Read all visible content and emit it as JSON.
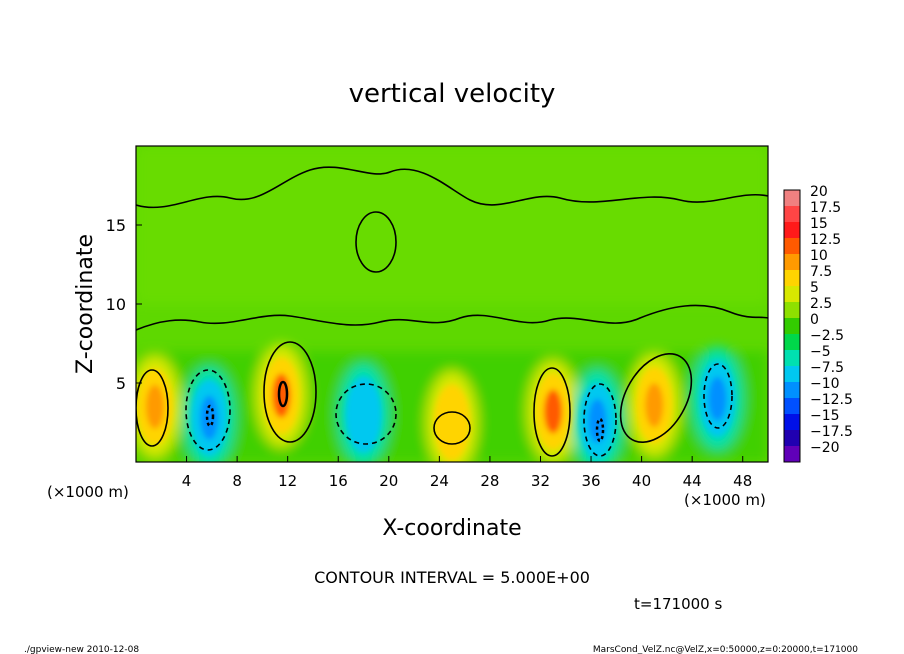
{
  "chart_data": {
    "type": "heatmap",
    "title": "vertical velocity",
    "xlabel": "X-coordinate",
    "ylabel": "Z-coordinate",
    "x_unit_label": "(×1000 m)",
    "y_unit_label": "(×1000 m)",
    "xlim": [
      0,
      50
    ],
    "ylim": [
      0,
      20
    ],
    "x_ticks": [
      "4",
      "8",
      "12",
      "16",
      "20",
      "24",
      "28",
      "32",
      "36",
      "40",
      "44",
      "48"
    ],
    "y_ticks": [
      "5",
      "10",
      "15"
    ],
    "contour_interval_label": "CONTOUR INTERVAL = 5.000E+00",
    "time_label": "t=171000 s",
    "colorbar": {
      "labels": [
        "20",
        "17.5",
        "15",
        "12.5",
        "10",
        "7.5",
        "5",
        "2.5",
        "0",
        "−2.5",
        "−5",
        "−7.5",
        "−10",
        "−12.5",
        "−15",
        "−17.5",
        "−20"
      ],
      "colors": [
        "#f08080",
        "#ff4545",
        "#ff1a1a",
        "#ff5a00",
        "#ff9a00",
        "#ffd400",
        "#d8e800",
        "#8ee000",
        "#33cc00",
        "#00d84a",
        "#00e0b0",
        "#00c8f0",
        "#0090ff",
        "#0050ff",
        "#0010e8",
        "#2000b0",
        "#6000b8"
      ]
    },
    "features": [
      {
        "x": 1.5,
        "z": 3.5,
        "value": 10
      },
      {
        "x": 5.8,
        "z": 2.8,
        "value": -10
      },
      {
        "x": 11.5,
        "z": 4.2,
        "value": 12
      },
      {
        "x": 18.0,
        "z": 3.0,
        "value": -7
      },
      {
        "x": 25.0,
        "z": 2.5,
        "value": 8
      },
      {
        "x": 33.0,
        "z": 3.2,
        "value": 12
      },
      {
        "x": 36.5,
        "z": 2.6,
        "value": -11
      },
      {
        "x": 41.0,
        "z": 3.6,
        "value": 10
      },
      {
        "x": 46.0,
        "z": 4.0,
        "value": -10
      }
    ]
  },
  "footer": {
    "left": "./gpview-new  2010-12-08",
    "right": "MarsCond_VelZ.nc@VelZ,x=0:50000,z=0:20000,t=171000"
  }
}
